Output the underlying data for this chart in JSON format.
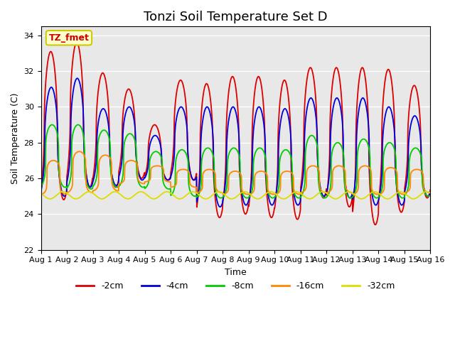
{
  "title": "Tonzi Soil Temperature Set D",
  "xlabel": "Time",
  "ylabel": "Soil Temperature (C)",
  "ylim": [
    22,
    34.5
  ],
  "total_days": 15,
  "xtick_labels": [
    "Aug 1",
    "Aug 2",
    "Aug 3",
    "Aug 4",
    "Aug 5",
    "Aug 6",
    "Aug 7",
    "Aug 8",
    "Aug 9",
    "Aug 10",
    "Aug 11",
    "Aug 12",
    "Aug 13",
    "Aug 14",
    "Aug 15",
    "Aug 16"
  ],
  "annotation_text": "TZ_fmet",
  "annotation_bg": "#ffffcc",
  "annotation_edge": "#cccc00",
  "annotation_text_color": "#cc0000",
  "series_colors": [
    "#dd0000",
    "#0000dd",
    "#00cc00",
    "#ff8800",
    "#dddd00"
  ],
  "series_labels": [
    "-2cm",
    "-4cm",
    "-8cm",
    "-16cm",
    "-32cm"
  ],
  "bg_color": "#e8e8e8",
  "fig_bg": "#ffffff",
  "grid_color": "#ffffff",
  "title_fontsize": 13,
  "peaks_2cm": [
    33.1,
    33.6,
    31.9,
    31.0,
    29.0,
    31.5,
    31.3,
    31.7,
    31.7,
    31.5,
    32.2,
    32.2,
    32.2,
    32.1,
    31.2
  ],
  "troughs_2cm": [
    24.8,
    25.5,
    25.5,
    26.0,
    25.9,
    25.9,
    23.8,
    24.0,
    23.8,
    23.7,
    24.9,
    24.4,
    23.4,
    24.1,
    24.9
  ],
  "peaks_4cm": [
    31.1,
    31.6,
    29.9,
    30.0,
    28.4,
    30.0,
    30.0,
    30.0,
    30.0,
    29.9,
    30.5,
    30.5,
    30.5,
    30.0,
    29.5
  ],
  "troughs_4cm": [
    25.0,
    25.5,
    25.6,
    25.9,
    25.9,
    25.9,
    24.4,
    24.5,
    24.5,
    24.5,
    25.0,
    24.9,
    24.5,
    24.5,
    25.0
  ],
  "peaks_8cm": [
    29.0,
    29.0,
    28.7,
    28.5,
    27.5,
    27.6,
    27.7,
    27.7,
    27.7,
    27.6,
    28.4,
    28.0,
    28.2,
    28.0,
    27.7
  ],
  "troughs_8cm": [
    25.5,
    25.4,
    25.5,
    25.5,
    25.4,
    25.0,
    24.9,
    24.9,
    24.9,
    24.9,
    24.9,
    24.9,
    24.9,
    24.9,
    25.0
  ],
  "peaks_16cm": [
    27.0,
    27.5,
    27.3,
    27.0,
    26.7,
    26.5,
    26.5,
    26.4,
    26.4,
    26.4,
    26.7,
    26.7,
    26.7,
    26.6,
    26.5
  ],
  "troughs_16cm": [
    25.1,
    25.2,
    25.3,
    25.7,
    25.8,
    25.5,
    25.2,
    25.1,
    25.1,
    25.1,
    25.2,
    25.2,
    25.1,
    25.1,
    25.2
  ],
  "base_32cm": 25.05,
  "amp_32cm": 0.2,
  "phase_32cm": 0.6
}
